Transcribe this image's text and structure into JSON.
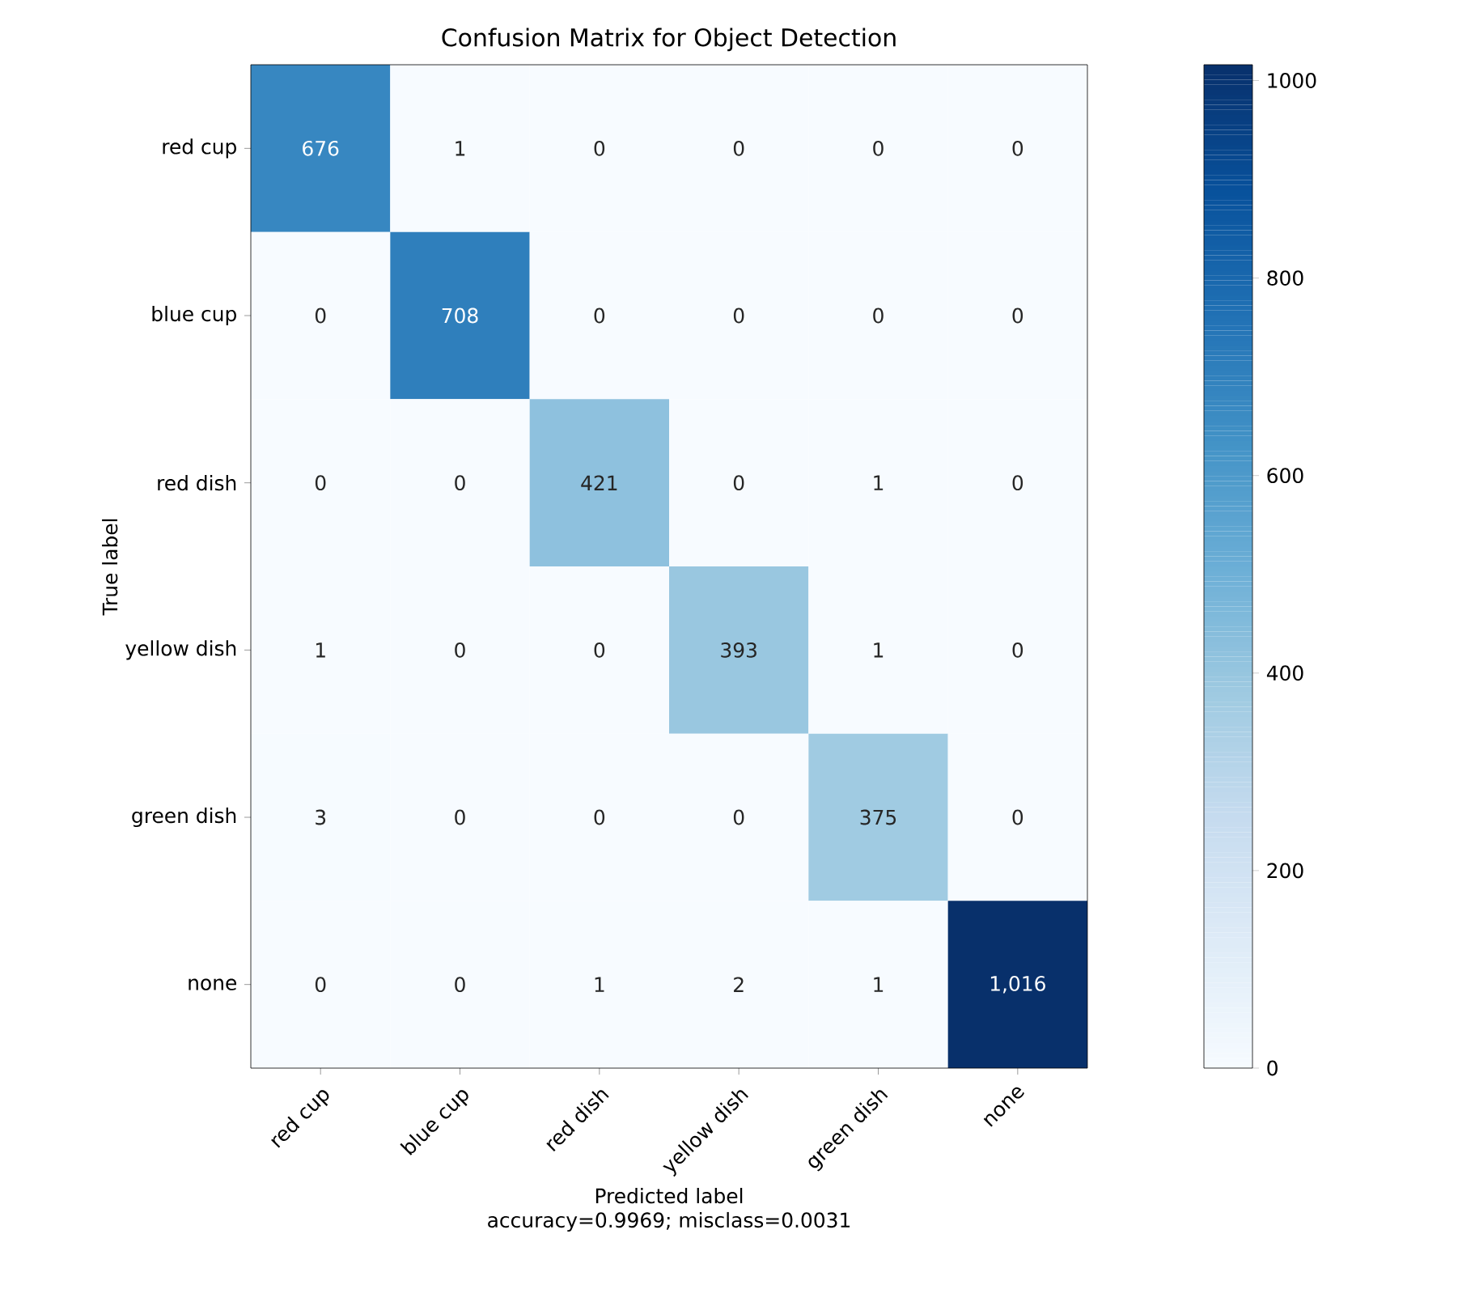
{
  "chart_data": {
    "type": "heatmap",
    "title": "Confusion Matrix for Object Detection",
    "xlabel": "Predicted label",
    "ylabel": "True label",
    "annotations": [
      "accuracy=0.9969; misclass=0.0031"
    ],
    "categories": [
      "red cup",
      "blue cup",
      "red dish",
      "yellow dish",
      "green dish",
      "none"
    ],
    "y_categories": [
      "red cup",
      "blue cup",
      "red dish",
      "yellow dish",
      "green dish",
      "none"
    ],
    "cells": [
      [
        676,
        1,
        0,
        0,
        0,
        0
      ],
      [
        0,
        708,
        0,
        0,
        0,
        0
      ],
      [
        0,
        0,
        421,
        0,
        1,
        0
      ],
      [
        1,
        0,
        0,
        393,
        1,
        0
      ],
      [
        3,
        0,
        0,
        0,
        375,
        0
      ],
      [
        0,
        0,
        1,
        2,
        1,
        1016
      ]
    ],
    "cell_labels": [
      [
        "676",
        "1",
        "0",
        "0",
        "0",
        "0"
      ],
      [
        "0",
        "708",
        "0",
        "0",
        "0",
        "0"
      ],
      [
        "0",
        "0",
        "421",
        "0",
        "1",
        "0"
      ],
      [
        "1",
        "0",
        "0",
        "393",
        "1",
        "0"
      ],
      [
        "3",
        "0",
        "0",
        "0",
        "375",
        "0"
      ],
      [
        "0",
        "0",
        "1",
        "2",
        "1",
        "1,016"
      ]
    ],
    "clim": [
      0,
      1016
    ],
    "cticks": [
      0,
      200,
      400,
      600,
      800,
      1000
    ],
    "grid": false
  }
}
